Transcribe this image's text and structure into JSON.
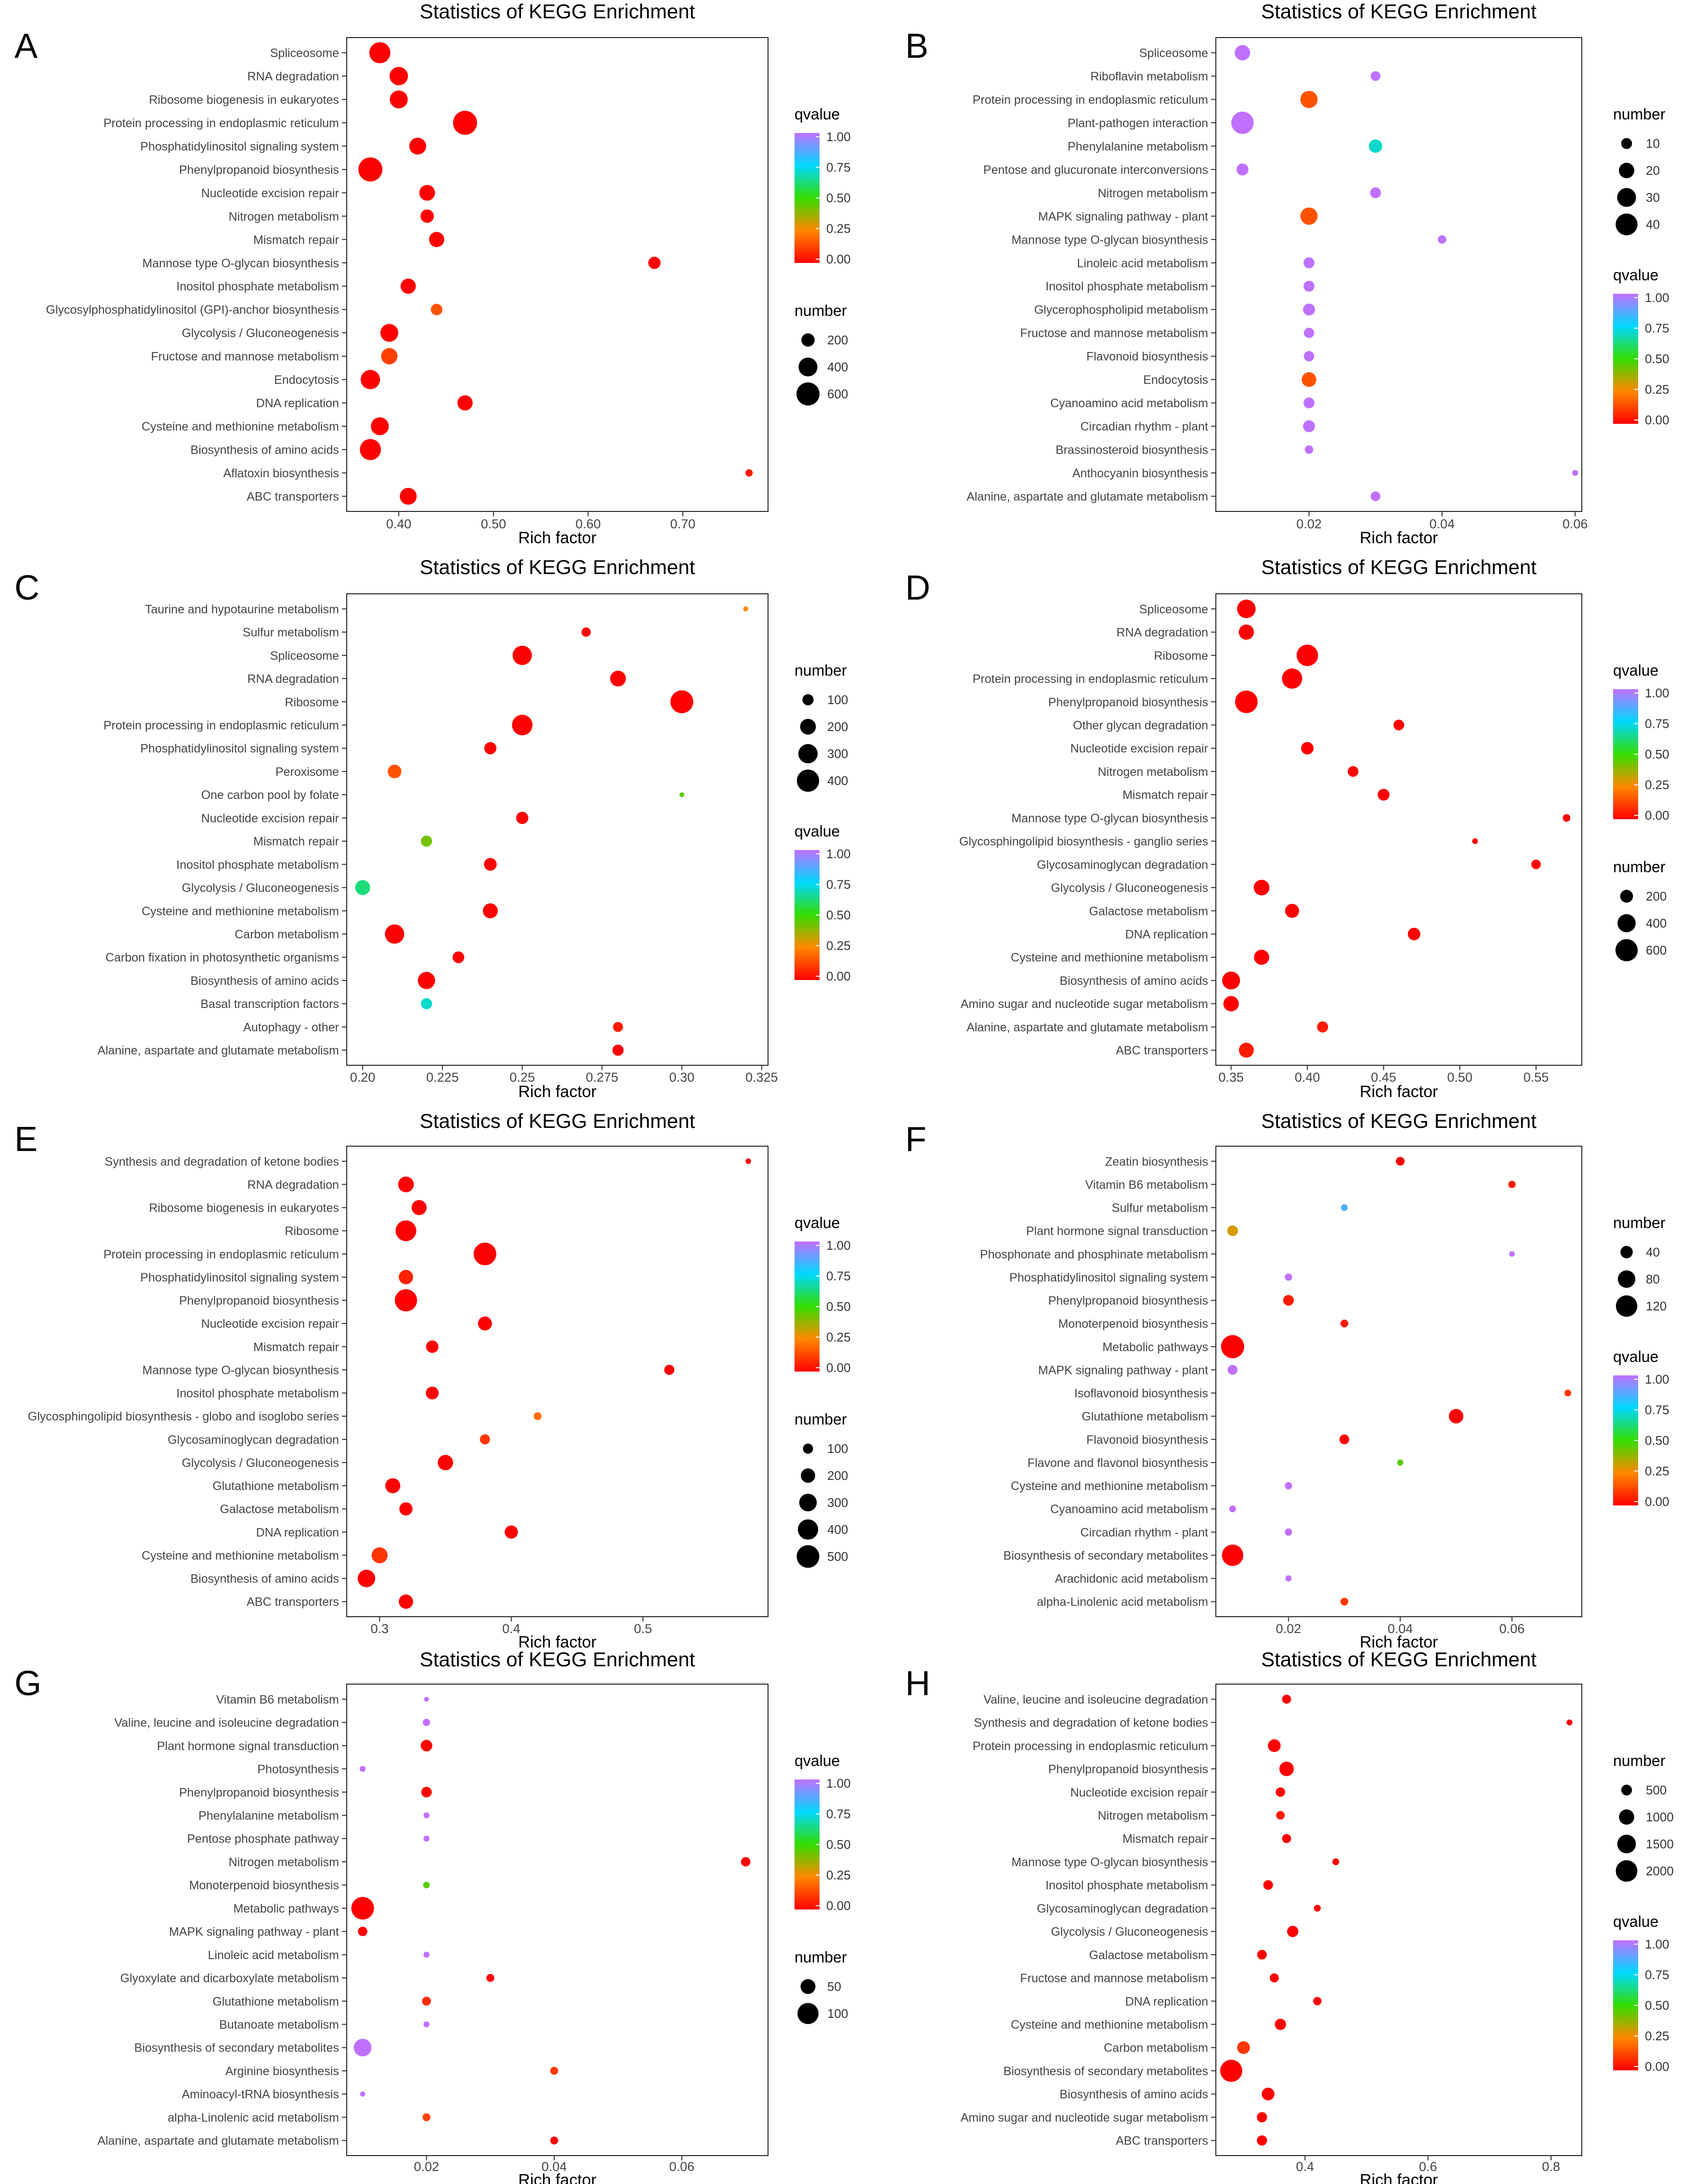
{
  "figure": {
    "panel_labels": [
      "A",
      "B",
      "C",
      "D",
      "E",
      "F",
      "G",
      "H"
    ],
    "common": {
      "title": "Statistics of KEGG Enrichment",
      "xlabel": "Rich factor",
      "qvalue_label": "qvalue",
      "number_label": "number"
    },
    "colors": {
      "q0": "#ff0000",
      "q025": "#ff8800",
      "q05": "#33dd00",
      "q075": "#00d8ff",
      "q1": "#c070ff"
    }
  },
  "chart_data": [
    {
      "panel": "A",
      "type": "scatter",
      "title": "Statistics of KEGG Enrichment",
      "xlabel": "Rich factor",
      "ylabel": "",
      "xlim": [
        0.345,
        0.79
      ],
      "xticks": [
        0.4,
        0.5,
        0.6,
        0.7
      ],
      "colorbar": {
        "label": "qvalue",
        "ticks": [
          "1.00",
          "0.75",
          "0.50",
          "0.25",
          "0.00"
        ]
      },
      "size_legend": {
        "label": "number",
        "values": [
          200,
          400,
          600
        ],
        "max": 600
      },
      "legend_order": "q-first",
      "categories": [
        "Spliceosome",
        "RNA degradation",
        "Ribosome biogenesis in eukaryotes",
        "Protein processing in endoplasmic reticulum",
        "Phosphatidylinositol signaling system",
        "Phenylpropanoid biosynthesis",
        "Nucleotide excision repair",
        "Nitrogen metabolism",
        "Mismatch repair",
        "Mannose type O-glycan biosynthesis",
        "Inositol phosphate metabolism",
        "Glycosylphosphatidylinositol (GPI)-anchor biosynthesis",
        "Glycolysis / Gluconeogenesis",
        "Fructose and mannose metabolism",
        "Endocytosis",
        "DNA replication",
        "Cysteine and methionine metabolism",
        "Biosynthesis of amino acids",
        "Aflatoxin biosynthesis",
        "ABC transporters"
      ],
      "x": [
        0.38,
        0.4,
        0.4,
        0.47,
        0.42,
        0.37,
        0.43,
        0.43,
        0.44,
        0.67,
        0.41,
        0.44,
        0.39,
        0.39,
        0.37,
        0.47,
        0.38,
        0.37,
        0.77,
        0.41
      ],
      "number": [
        500,
        380,
        360,
        650,
        320,
        650,
        280,
        200,
        260,
        170,
        260,
        150,
        360,
        300,
        420,
        260,
        360,
        500,
        60,
        320
      ],
      "qvalue": [
        0,
        0,
        0,
        0,
        0,
        0,
        0,
        0,
        0,
        0,
        0,
        0.15,
        0,
        0.12,
        0,
        0,
        0,
        0,
        0.05,
        0
      ]
    },
    {
      "panel": "B",
      "type": "scatter",
      "title": "Statistics of KEGG Enrichment",
      "xlabel": "Rich factor",
      "ylabel": "",
      "xlim": [
        0.006,
        0.061
      ],
      "xticks": [
        0.02,
        0.04,
        0.06
      ],
      "colorbar": {
        "label": "qvalue",
        "ticks": [
          "1.00",
          "0.75",
          "0.50",
          "0.25",
          "0.00"
        ]
      },
      "size_legend": {
        "label": "number",
        "values": [
          10,
          20,
          30,
          40
        ],
        "max": 45
      },
      "legend_order": "number-first",
      "categories": [
        "Spliceosome",
        "Riboflavin metabolism",
        "Protein processing in endoplasmic reticulum",
        "Plant-pathogen interaction",
        "Phenylalanine metabolism",
        "Pentose and glucuronate interconversions",
        "Nitrogen metabolism",
        "MAPK signaling pathway - plant",
        "Mannose type O-glycan biosynthesis",
        "Linoleic acid metabolism",
        "Inositol phosphate metabolism",
        "Glycerophospholipid metabolism",
        "Fructose and mannose metabolism",
        "Flavonoid biosynthesis",
        "Endocytosis",
        "Cyanoamino acid metabolism",
        "Circadian rhythm - plant",
        "Brassinosteroid biosynthesis",
        "Anthocyanin biosynthesis",
        "Alanine, aspartate and glutamate metabolism"
      ],
      "x": [
        0.01,
        0.03,
        0.02,
        0.01,
        0.03,
        0.01,
        0.03,
        0.02,
        0.04,
        0.02,
        0.02,
        0.02,
        0.02,
        0.02,
        0.02,
        0.02,
        0.02,
        0.02,
        0.06,
        0.03
      ],
      "number": [
        20,
        8,
        25,
        42,
        15,
        12,
        10,
        25,
        6,
        10,
        10,
        12,
        9,
        9,
        18,
        10,
        12,
        6,
        3,
        8
      ],
      "qvalue": [
        1,
        1,
        0.15,
        1,
        0.7,
        1,
        1,
        0.15,
        1,
        1,
        1,
        1,
        1,
        1,
        0.15,
        1,
        1,
        1,
        1,
        1
      ]
    },
    {
      "panel": "C",
      "type": "scatter",
      "title": "Statistics of KEGG Enrichment",
      "xlabel": "Rich factor",
      "ylabel": "",
      "xlim": [
        0.195,
        0.327
      ],
      "xticks": [
        0.2,
        0.225,
        0.25,
        0.275,
        0.3,
        0.325
      ],
      "colorbar": {
        "label": "qvalue",
        "ticks": [
          "1.00",
          "0.75",
          "0.50",
          "0.25",
          "0.00"
        ]
      },
      "size_legend": {
        "label": "number",
        "values": [
          100,
          200,
          300,
          400
        ],
        "max": 430
      },
      "legend_order": "number-first",
      "categories": [
        "Taurine and hypotaurine metabolism",
        "Sulfur metabolism",
        "Spliceosome",
        "RNA degradation",
        "Ribosome",
        "Protein processing in endoplasmic reticulum",
        "Phosphatidylinositol signaling system",
        "Peroxisome",
        "One carbon pool by folate",
        "Nucleotide excision repair",
        "Mismatch repair",
        "Inositol phosphate metabolism",
        "Glycolysis / Gluconeogenesis",
        "Cysteine and methionine metabolism",
        "Carbon metabolism",
        "Carbon fixation in photosynthetic organisms",
        "Biosynthesis of amino acids",
        "Basal transcription factors",
        "Autophagy - other",
        "Alanine, aspartate and glutamate metabolism"
      ],
      "x": [
        0.32,
        0.27,
        0.25,
        0.28,
        0.3,
        0.25,
        0.24,
        0.21,
        0.3,
        0.25,
        0.22,
        0.24,
        0.2,
        0.24,
        0.21,
        0.23,
        0.22,
        0.22,
        0.28,
        0.28
      ],
      "number": [
        20,
        70,
        300,
        200,
        420,
        340,
        120,
        150,
        15,
        120,
        100,
        130,
        180,
        180,
        300,
        110,
        240,
        100,
        80,
        100
      ],
      "qvalue": [
        0.25,
        0,
        0,
        0,
        0,
        0,
        0,
        0.15,
        0.45,
        0,
        0.42,
        0,
        0.62,
        0,
        0,
        0,
        0,
        0.7,
        0.05,
        0
      ]
    },
    {
      "panel": "D",
      "type": "scatter",
      "title": "Statistics of KEGG Enrichment",
      "xlabel": "Rich factor",
      "ylabel": "",
      "xlim": [
        0.34,
        0.58
      ],
      "xticks": [
        0.35,
        0.4,
        0.45,
        0.5,
        0.55
      ],
      "colorbar": {
        "label": "qvalue",
        "ticks": [
          "1.00",
          "0.75",
          "0.50",
          "0.25",
          "0.00"
        ]
      },
      "size_legend": {
        "label": "number",
        "values": [
          200,
          400,
          600
        ],
        "max": 650
      },
      "legend_order": "q-first",
      "categories": [
        "Spliceosome",
        "RNA degradation",
        "Ribosome",
        "Protein processing in endoplasmic reticulum",
        "Phenylpropanoid biosynthesis",
        "Other glycan degradation",
        "Nucleotide excision repair",
        "Nitrogen metabolism",
        "Mismatch repair",
        "Mannose type O-glycan biosynthesis",
        "Glycosphingolipid biosynthesis - ganglio series",
        "Glycosaminoglycan degradation",
        "Glycolysis / Gluconeogenesis",
        "Galactose metabolism",
        "DNA replication",
        "Cysteine and methionine metabolism",
        "Biosynthesis of amino acids",
        "Amino sugar and nucleotide sugar metabolism",
        "Alanine, aspartate and glutamate metabolism",
        "ABC transporters"
      ],
      "x": [
        0.36,
        0.36,
        0.4,
        0.39,
        0.36,
        0.46,
        0.4,
        0.43,
        0.45,
        0.57,
        0.51,
        0.55,
        0.37,
        0.39,
        0.47,
        0.37,
        0.35,
        0.35,
        0.41,
        0.36
      ],
      "number": [
        420,
        280,
        560,
        500,
        620,
        140,
        190,
        140,
        170,
        70,
        40,
        110,
        300,
        240,
        190,
        280,
        390,
        290,
        150,
        270
      ],
      "qvalue": [
        0,
        0,
        0,
        0,
        0,
        0,
        0,
        0,
        0,
        0,
        0,
        0,
        0,
        0,
        0,
        0,
        0,
        0,
        0.05,
        0.05
      ]
    },
    {
      "panel": "E",
      "type": "scatter",
      "title": "Statistics of KEGG Enrichment",
      "xlabel": "Rich factor",
      "ylabel": "",
      "xlim": [
        0.275,
        0.595
      ],
      "xticks": [
        0.3,
        0.4,
        0.5
      ],
      "colorbar": {
        "label": "qvalue",
        "ticks": [
          "1.00",
          "0.75",
          "0.50",
          "0.25",
          "0.00"
        ]
      },
      "size_legend": {
        "label": "number",
        "values": [
          100,
          200,
          300,
          400,
          500
        ],
        "max": 520
      },
      "legend_order": "q-first",
      "categories": [
        "Synthesis and degradation of ketone bodies",
        "RNA degradation",
        "Ribosome biogenesis in eukaryotes",
        "Ribosome",
        "Protein processing in endoplasmic reticulum",
        "Phosphatidylinositol signaling system",
        "Phenylpropanoid biosynthesis",
        "Nucleotide excision repair",
        "Mismatch repair",
        "Mannose type O-glycan biosynthesis",
        "Inositol phosphate metabolism",
        "Glycosphingolipid biosynthesis - globo and isoglobo series",
        "Glycosaminoglycan degradation",
        "Glycolysis / Gluconeogenesis",
        "Glutathione metabolism",
        "Galactose metabolism",
        "DNA replication",
        "Cysteine and methionine metabolism",
        "Biosynthesis of amino acids",
        "ABC transporters"
      ],
      "x": [
        0.58,
        0.32,
        0.33,
        0.32,
        0.38,
        0.32,
        0.32,
        0.38,
        0.34,
        0.52,
        0.34,
        0.42,
        0.38,
        0.35,
        0.31,
        0.32,
        0.4,
        0.3,
        0.29,
        0.32
      ],
      "number": [
        30,
        240,
        220,
        420,
        500,
        200,
        480,
        190,
        150,
        100,
        160,
        60,
        100,
        230,
        220,
        170,
        170,
        250,
        300,
        200
      ],
      "qvalue": [
        0,
        0,
        0,
        0,
        0,
        0.06,
        0,
        0,
        0,
        0,
        0,
        0.2,
        0.1,
        0,
        0,
        0,
        0,
        0.1,
        0,
        0
      ]
    },
    {
      "panel": "F",
      "type": "scatter",
      "title": "Statistics of KEGG Enrichment",
      "xlabel": "Rich factor",
      "ylabel": "",
      "xlim": [
        0.007,
        0.0725
      ],
      "xticks": [
        0.02,
        0.04,
        0.06
      ],
      "colorbar": {
        "label": "qvalue",
        "ticks": [
          "1.00",
          "0.75",
          "0.50",
          "0.25",
          "0.00"
        ]
      },
      "size_legend": {
        "label": "number",
        "values": [
          40,
          80,
          120
        ],
        "max": 140
      },
      "legend_order": "number-first",
      "categories": [
        "Zeatin biosynthesis",
        "Vitamin B6 metabolism",
        "Sulfur metabolism",
        "Plant hormone signal transduction",
        "Phosphonate and phosphinate metabolism",
        "Phosphatidylinositol signaling system",
        "Phenylpropanoid biosynthesis",
        "Monoterpenoid biosynthesis",
        "Metabolic pathways",
        "MAPK signaling pathway - plant",
        "Isoflavonoid biosynthesis",
        "Glutathione metabolism",
        "Flavonoid biosynthesis",
        "Flavone and flavonol biosynthesis",
        "Cysteine and methionine metabolism",
        "Cyanoamino acid metabolism",
        "Circadian rhythm - plant",
        "Biosynthesis of secondary metabolites",
        "Arachidonic acid metabolism",
        "alpha-Linolenic acid metabolism"
      ],
      "x": [
        0.04,
        0.06,
        0.03,
        0.01,
        0.06,
        0.02,
        0.02,
        0.03,
        0.01,
        0.01,
        0.07,
        0.05,
        0.03,
        0.04,
        0.02,
        0.01,
        0.02,
        0.01,
        0.02,
        0.03
      ],
      "number": [
        20,
        14,
        12,
        30,
        8,
        14,
        30,
        16,
        140,
        25,
        12,
        55,
        25,
        10,
        14,
        12,
        14,
        120,
        10,
        16
      ],
      "qvalue": [
        0,
        0.05,
        0.85,
        0.3,
        1,
        1,
        0.05,
        0.05,
        0,
        1,
        0.1,
        0,
        0,
        0.45,
        1,
        1,
        1,
        0,
        1,
        0.1
      ]
    },
    {
      "panel": "G",
      "type": "scatter",
      "title": "Statistics of KEGG Enrichment",
      "xlabel": "Rich factor",
      "ylabel": "",
      "xlim": [
        0.0075,
        0.0735
      ],
      "xticks": [
        0.02,
        0.04,
        0.06
      ],
      "colorbar": {
        "label": "qvalue",
        "ticks": [
          "1.00",
          "0.75",
          "0.50",
          "0.25",
          "0.00"
        ]
      },
      "size_legend": {
        "label": "number",
        "values": [
          50,
          100
        ],
        "max": 120
      },
      "legend_order": "q-first",
      "categories": [
        "Vitamin B6 metabolism",
        "Valine, leucine and isoleucine degradation",
        "Plant hormone signal transduction",
        "Photosynthesis",
        "Phenylpropanoid biosynthesis",
        "Phenylalanine metabolism",
        "Pentose phosphate pathway",
        "Nitrogen metabolism",
        "Monoterpenoid biosynthesis",
        "Metabolic pathways",
        "MAPK signaling pathway - plant",
        "Linoleic acid metabolism",
        "Glyoxylate and dicarboxylate metabolism",
        "Glutathione metabolism",
        "Butanoate metabolism",
        "Biosynthesis of secondary metabolites",
        "Arginine biosynthesis",
        "Aminoacyl-tRNA biosynthesis",
        "alpha-Linolenic acid metabolism",
        "Alanine, aspartate and glutamate metabolism"
      ],
      "x": [
        0.02,
        0.02,
        0.02,
        0.01,
        0.02,
        0.02,
        0.02,
        0.07,
        0.02,
        0.01,
        0.01,
        0.02,
        0.03,
        0.02,
        0.02,
        0.01,
        0.04,
        0.01,
        0.02,
        0.04
      ],
      "number": [
        5,
        12,
        30,
        8,
        25,
        8,
        8,
        20,
        10,
        115,
        20,
        8,
        14,
        18,
        8,
        70,
        14,
        6,
        14,
        14
      ],
      "qvalue": [
        1,
        1,
        0,
        1,
        0,
        1,
        1,
        0,
        0.45,
        0,
        0,
        1,
        0,
        0.08,
        1,
        1,
        0.1,
        1,
        0.12,
        0
      ]
    },
    {
      "panel": "H",
      "type": "scatter",
      "title": "Statistics of KEGG Enrichment",
      "xlabel": "Rich factor",
      "ylabel": "",
      "xlim": [
        0.255,
        0.85
      ],
      "xticks": [
        0.4,
        0.6,
        0.8
      ],
      "colorbar": {
        "label": "qvalue",
        "ticks": [
          "1.00",
          "0.75",
          "0.50",
          "0.25",
          "0.00"
        ]
      },
      "size_legend": {
        "label": "number",
        "values": [
          500,
          1000,
          1500,
          2000
        ],
        "max": 2300
      },
      "legend_order": "number-first",
      "categories": [
        "Valine, leucine and isoleucine degradation",
        "Synthesis and degradation of ketone bodies",
        "Protein processing in endoplasmic reticulum",
        "Phenylpropanoid biosynthesis",
        "Nucleotide excision repair",
        "Nitrogen metabolism",
        "Mismatch repair",
        "Mannose type O-glycan biosynthesis",
        "Inositol phosphate metabolism",
        "Glycosaminoglycan degradation",
        "Glycolysis / Gluconeogenesis",
        "Galactose metabolism",
        "Fructose and mannose metabolism",
        "DNA replication",
        "Cysteine and methionine metabolism",
        "Carbon metabolism",
        "Biosynthesis of secondary metabolites",
        "Biosynthesis of amino acids",
        "Amino sugar and nucleotide sugar metabolism",
        "ABC transporters"
      ],
      "x": [
        0.37,
        0.83,
        0.35,
        0.37,
        0.36,
        0.36,
        0.37,
        0.45,
        0.34,
        0.42,
        0.38,
        0.33,
        0.35,
        0.42,
        0.36,
        0.3,
        0.28,
        0.34,
        0.33,
        0.33
      ],
      "number": [
        350,
        150,
        700,
        900,
        380,
        320,
        350,
        200,
        400,
        200,
        550,
        400,
        350,
        300,
        550,
        700,
        2100,
        700,
        450,
        450
      ],
      "qvalue": [
        0,
        0,
        0,
        0,
        0,
        0.05,
        0,
        0,
        0,
        0,
        0,
        0,
        0,
        0,
        0,
        0.1,
        0,
        0,
        0,
        0
      ]
    }
  ]
}
